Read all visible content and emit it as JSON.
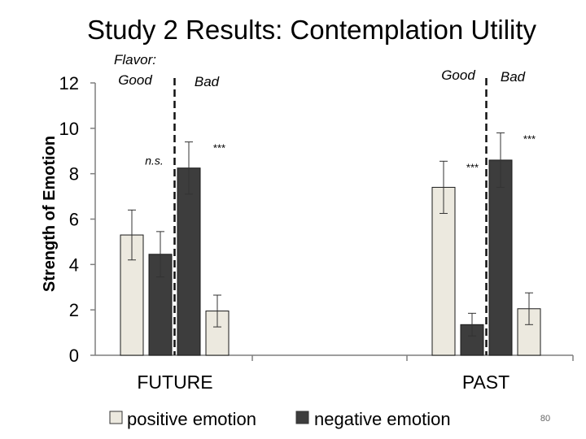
{
  "chart_data": {
    "type": "bar",
    "title": "Study 2 Results: Contemplation Utility",
    "ylabel": "Strength of Emotion",
    "xlabel": "",
    "ylim": [
      0,
      12
    ],
    "yticks": [
      0,
      2,
      4,
      6,
      8,
      10,
      12
    ],
    "groups": [
      {
        "name": "FUTURE",
        "bars": [
          {
            "flavor": "Good",
            "series": "positive emotion",
            "value": 5.3,
            "err": 1.1
          },
          {
            "flavor": "Good",
            "series": "negative emotion",
            "value": 4.45,
            "err": 1.0
          },
          {
            "flavor": "Bad",
            "series": "negative emotion",
            "value": 8.25,
            "err": 1.15
          },
          {
            "flavor": "Bad",
            "series": "positive emotion",
            "value": 1.95,
            "err": 0.7
          }
        ],
        "annotations": [
          {
            "text": "n.s.",
            "between": [
              0,
              1
            ]
          },
          {
            "text": "***",
            "between": [
              2,
              3
            ]
          }
        ]
      },
      {
        "name": "PAST",
        "bars": [
          {
            "flavor": "Good",
            "series": "positive emotion",
            "value": 7.4,
            "err": 1.15
          },
          {
            "flavor": "Good",
            "series": "negative emotion",
            "value": 1.35,
            "err": 0.5
          },
          {
            "flavor": "Bad",
            "series": "negative emotion",
            "value": 8.6,
            "err": 1.2
          },
          {
            "flavor": "Bad",
            "series": "positive emotion",
            "value": 2.05,
            "err": 0.7
          }
        ],
        "annotations": [
          {
            "text": "***",
            "between": [
              0,
              1
            ]
          },
          {
            "text": "***",
            "between": [
              2,
              3
            ]
          }
        ]
      }
    ],
    "flavor_labels": {
      "future_good": "Flavor:\nGood",
      "future_bad": "Bad",
      "past_good": "Good",
      "past_bad": "Bad"
    },
    "legend": [
      {
        "label": "positive emotion",
        "color": "#ece9df"
      },
      {
        "label": "negative emotion",
        "color": "#3d3d3d"
      }
    ]
  },
  "page_number": "80"
}
